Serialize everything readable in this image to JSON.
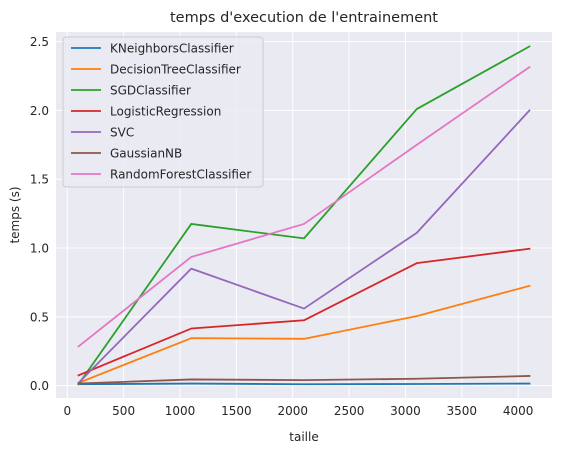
{
  "chart_data": {
    "type": "line",
    "title": "temps d'execution de l'entrainement",
    "xlabel": "taille",
    "ylabel": "temps (s)",
    "xlim": [
      -100,
      4300
    ],
    "ylim": [
      -0.09,
      2.57
    ],
    "xticks": [
      0,
      500,
      1000,
      1500,
      2000,
      2500,
      3000,
      3500,
      4000
    ],
    "yticks": [
      0.0,
      0.5,
      1.0,
      1.5,
      2.0,
      2.5
    ],
    "xtick_labels": [
      "0",
      "500",
      "1000",
      "1500",
      "2000",
      "2500",
      "3000",
      "3500",
      "4000"
    ],
    "ytick_labels": [
      "0.0",
      "0.5",
      "1.0",
      "1.5",
      "2.0",
      "2.5"
    ],
    "grid": true,
    "legend_position": "top-left",
    "x": [
      100,
      1100,
      2100,
      3100,
      4100
    ],
    "series": [
      {
        "name": "KNeighborsClassifier",
        "color": "#1f77b4",
        "values": [
          0.01,
          0.015,
          0.01,
          0.012,
          0.015
        ]
      },
      {
        "name": "DecisionTreeClassifier",
        "color": "#ff7f0e",
        "values": [
          0.02,
          0.345,
          0.34,
          0.505,
          0.725
        ]
      },
      {
        "name": "SGDClassifier",
        "color": "#2ca02c",
        "values": [
          0.01,
          1.175,
          1.07,
          2.01,
          2.465
        ]
      },
      {
        "name": "LogisticRegression",
        "color": "#d62728",
        "values": [
          0.075,
          0.415,
          0.475,
          0.89,
          0.995
        ]
      },
      {
        "name": "SVC",
        "color": "#9467bd",
        "values": [
          0.02,
          0.85,
          0.56,
          1.11,
          2.0
        ]
      },
      {
        "name": "GaussianNB",
        "color": "#8c564b",
        "values": [
          0.015,
          0.045,
          0.04,
          0.05,
          0.07
        ]
      },
      {
        "name": "RandomForestClassifier",
        "color": "#e377c2",
        "values": [
          0.285,
          0.935,
          1.175,
          1.75,
          2.315
        ]
      }
    ]
  }
}
